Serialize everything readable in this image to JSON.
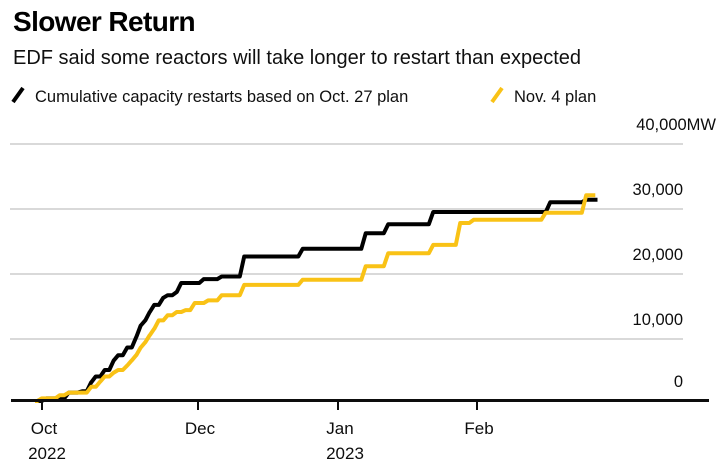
{
  "header": {
    "title": "Slower Return",
    "subtitle": "EDF said some reactors will take longer to restart than expected"
  },
  "legend": {
    "series1_label": "Cumulative capacity restarts based on Oct. 27 plan",
    "series2_label": "Nov. 4 plan"
  },
  "colors": {
    "series1": "#000000",
    "series2": "#F9C216",
    "gridline": "#d9d9d9",
    "axis": "#0d0d0d"
  },
  "chart_data": {
    "type": "line",
    "subtype": "cumulative-step",
    "title": "Slower Return",
    "subtitle": "EDF said some reactors will take longer to restart than expected",
    "unit": "MW",
    "x_axis": {
      "start_date": "2022-10-26",
      "days_span": 125,
      "ticks": [
        {
          "label": "Oct",
          "year": "2022",
          "day": 1
        },
        {
          "label": "Dec",
          "year": "",
          "day": 36
        },
        {
          "label": "Jan",
          "year": "2023",
          "day": 67
        },
        {
          "label": "Feb",
          "year": "",
          "day": 98
        }
      ]
    },
    "y_axis": {
      "min": 0,
      "max": 40000,
      "tick_values": [
        0,
        10000,
        20000,
        30000,
        40000
      ],
      "ticks": [
        "0",
        "10,000",
        "20,000",
        "30,000",
        "40,000MW"
      ],
      "grid": true,
      "labels_position": "right"
    },
    "legend_position": "top",
    "series": [
      {
        "name": "Cumulative capacity restarts based on Oct. 27 plan",
        "color": "#000000",
        "end_day": 125,
        "steps_day_mw": [
          [
            0,
            0
          ],
          [
            2,
            400
          ],
          [
            7,
            1300
          ],
          [
            10,
            1500
          ],
          [
            12,
            2900
          ],
          [
            13,
            3800
          ],
          [
            15,
            4800
          ],
          [
            17,
            6300
          ],
          [
            18,
            7100
          ],
          [
            20,
            8300
          ],
          [
            22,
            9900
          ],
          [
            23,
            11700
          ],
          [
            24,
            12500
          ],
          [
            25,
            13800
          ],
          [
            26,
            14900
          ],
          [
            28,
            16000
          ],
          [
            29,
            16400
          ],
          [
            31,
            16900
          ],
          [
            32,
            18300
          ],
          [
            37,
            18900
          ],
          [
            41,
            19300
          ],
          [
            46,
            22400
          ],
          [
            59,
            23600
          ],
          [
            73,
            26000
          ],
          [
            78,
            27400
          ],
          [
            88,
            29300
          ],
          [
            114,
            30800
          ],
          [
            122,
            31200
          ]
        ]
      },
      {
        "name": "Nov. 4 plan",
        "color": "#F9C216",
        "end_day": 124.5,
        "steps_day_mw": [
          [
            0,
            0
          ],
          [
            1,
            400
          ],
          [
            5,
            900
          ],
          [
            7,
            1300
          ],
          [
            12,
            2200
          ],
          [
            14,
            3000
          ],
          [
            15,
            3800
          ],
          [
            17,
            4400
          ],
          [
            18,
            4800
          ],
          [
            20,
            5500
          ],
          [
            21,
            6300
          ],
          [
            22,
            7100
          ],
          [
            23,
            8300
          ],
          [
            24,
            9100
          ],
          [
            25,
            10200
          ],
          [
            26,
            11200
          ],
          [
            27,
            12500
          ],
          [
            29,
            13300
          ],
          [
            31,
            13800
          ],
          [
            33,
            14100
          ],
          [
            35,
            15200
          ],
          [
            38,
            15600
          ],
          [
            41,
            16400
          ],
          [
            46,
            18000
          ],
          [
            59,
            18800
          ],
          [
            73,
            20900
          ],
          [
            78,
            22900
          ],
          [
            88,
            24200
          ],
          [
            94,
            27600
          ],
          [
            97,
            28100
          ],
          [
            113,
            29200
          ],
          [
            122,
            31900
          ]
        ]
      }
    ]
  }
}
